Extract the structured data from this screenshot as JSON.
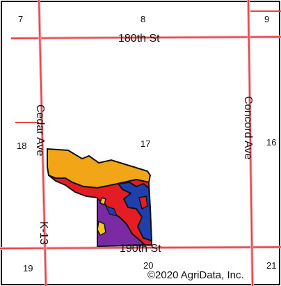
{
  "map": {
    "sections": {
      "s7": "7",
      "s8": "8",
      "s9": "9",
      "s16": "16",
      "s17": "17",
      "s18": "18",
      "s19": "19",
      "s20": "20",
      "s21": "21"
    },
    "roads": {
      "north": "180th St",
      "south": "190th St",
      "west": "Cedar Ave",
      "west_route": "K-13",
      "east": "Concord Ave"
    },
    "copyright": "©2020 AgriData, Inc."
  },
  "colors": {
    "road_line": "#e8434d",
    "border": "#111111",
    "soil_orange": "#f2a516",
    "soil_red": "#e41d25",
    "soil_blue": "#1f3fae",
    "soil_purple": "#7a2aa3",
    "soil_yellow": "#f6c51e"
  }
}
